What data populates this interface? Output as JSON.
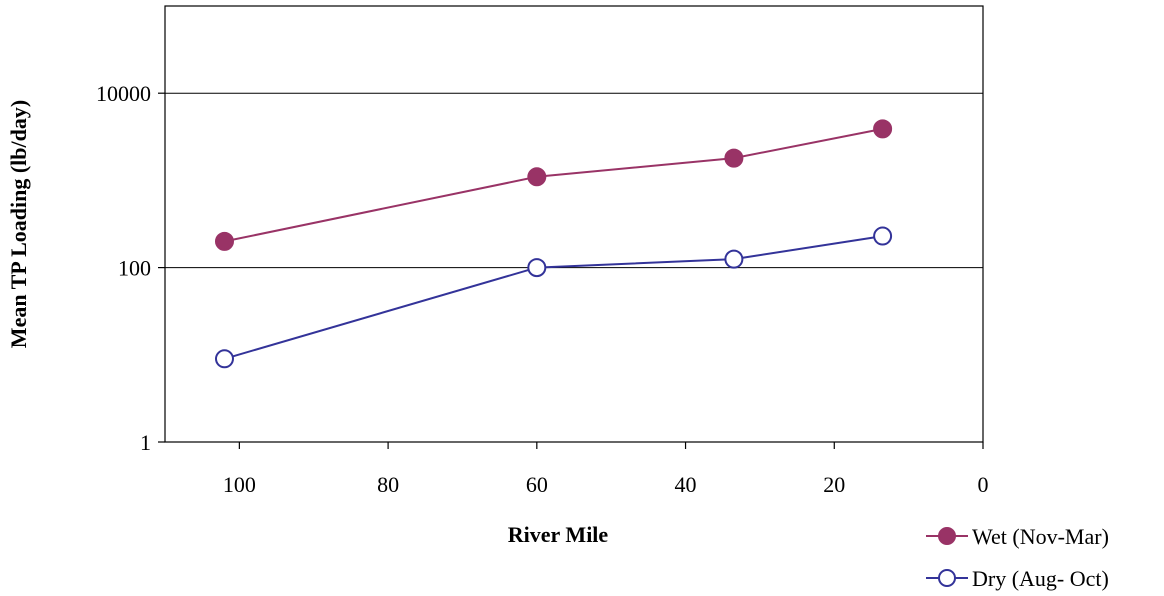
{
  "chart_data": {
    "type": "line",
    "xlabel": "River Mile",
    "ylabel": "Mean TP Loading (lb/day)",
    "xlim": [
      110,
      0
    ],
    "ylim": [
      1,
      100000
    ],
    "yscale": "log",
    "x_ticks": [
      100,
      80,
      60,
      40,
      20,
      0
    ],
    "y_ticks": [
      1,
      100,
      10000
    ],
    "grid": "horizontal",
    "legend_position": "bottom-right",
    "series": [
      {
        "name": "Wet (Nov-Mar)",
        "color": "#993366",
        "marker": "filled-circle",
        "x": [
          102,
          60,
          33.5,
          13.5
        ],
        "y": [
          200,
          1100,
          1800,
          3900
        ]
      },
      {
        "name": "Dry (Aug- Oct)",
        "color": "#333399",
        "marker": "open-circle",
        "x": [
          102,
          60,
          33.5,
          13.5
        ],
        "y": [
          9,
          100,
          125,
          230
        ]
      }
    ]
  }
}
